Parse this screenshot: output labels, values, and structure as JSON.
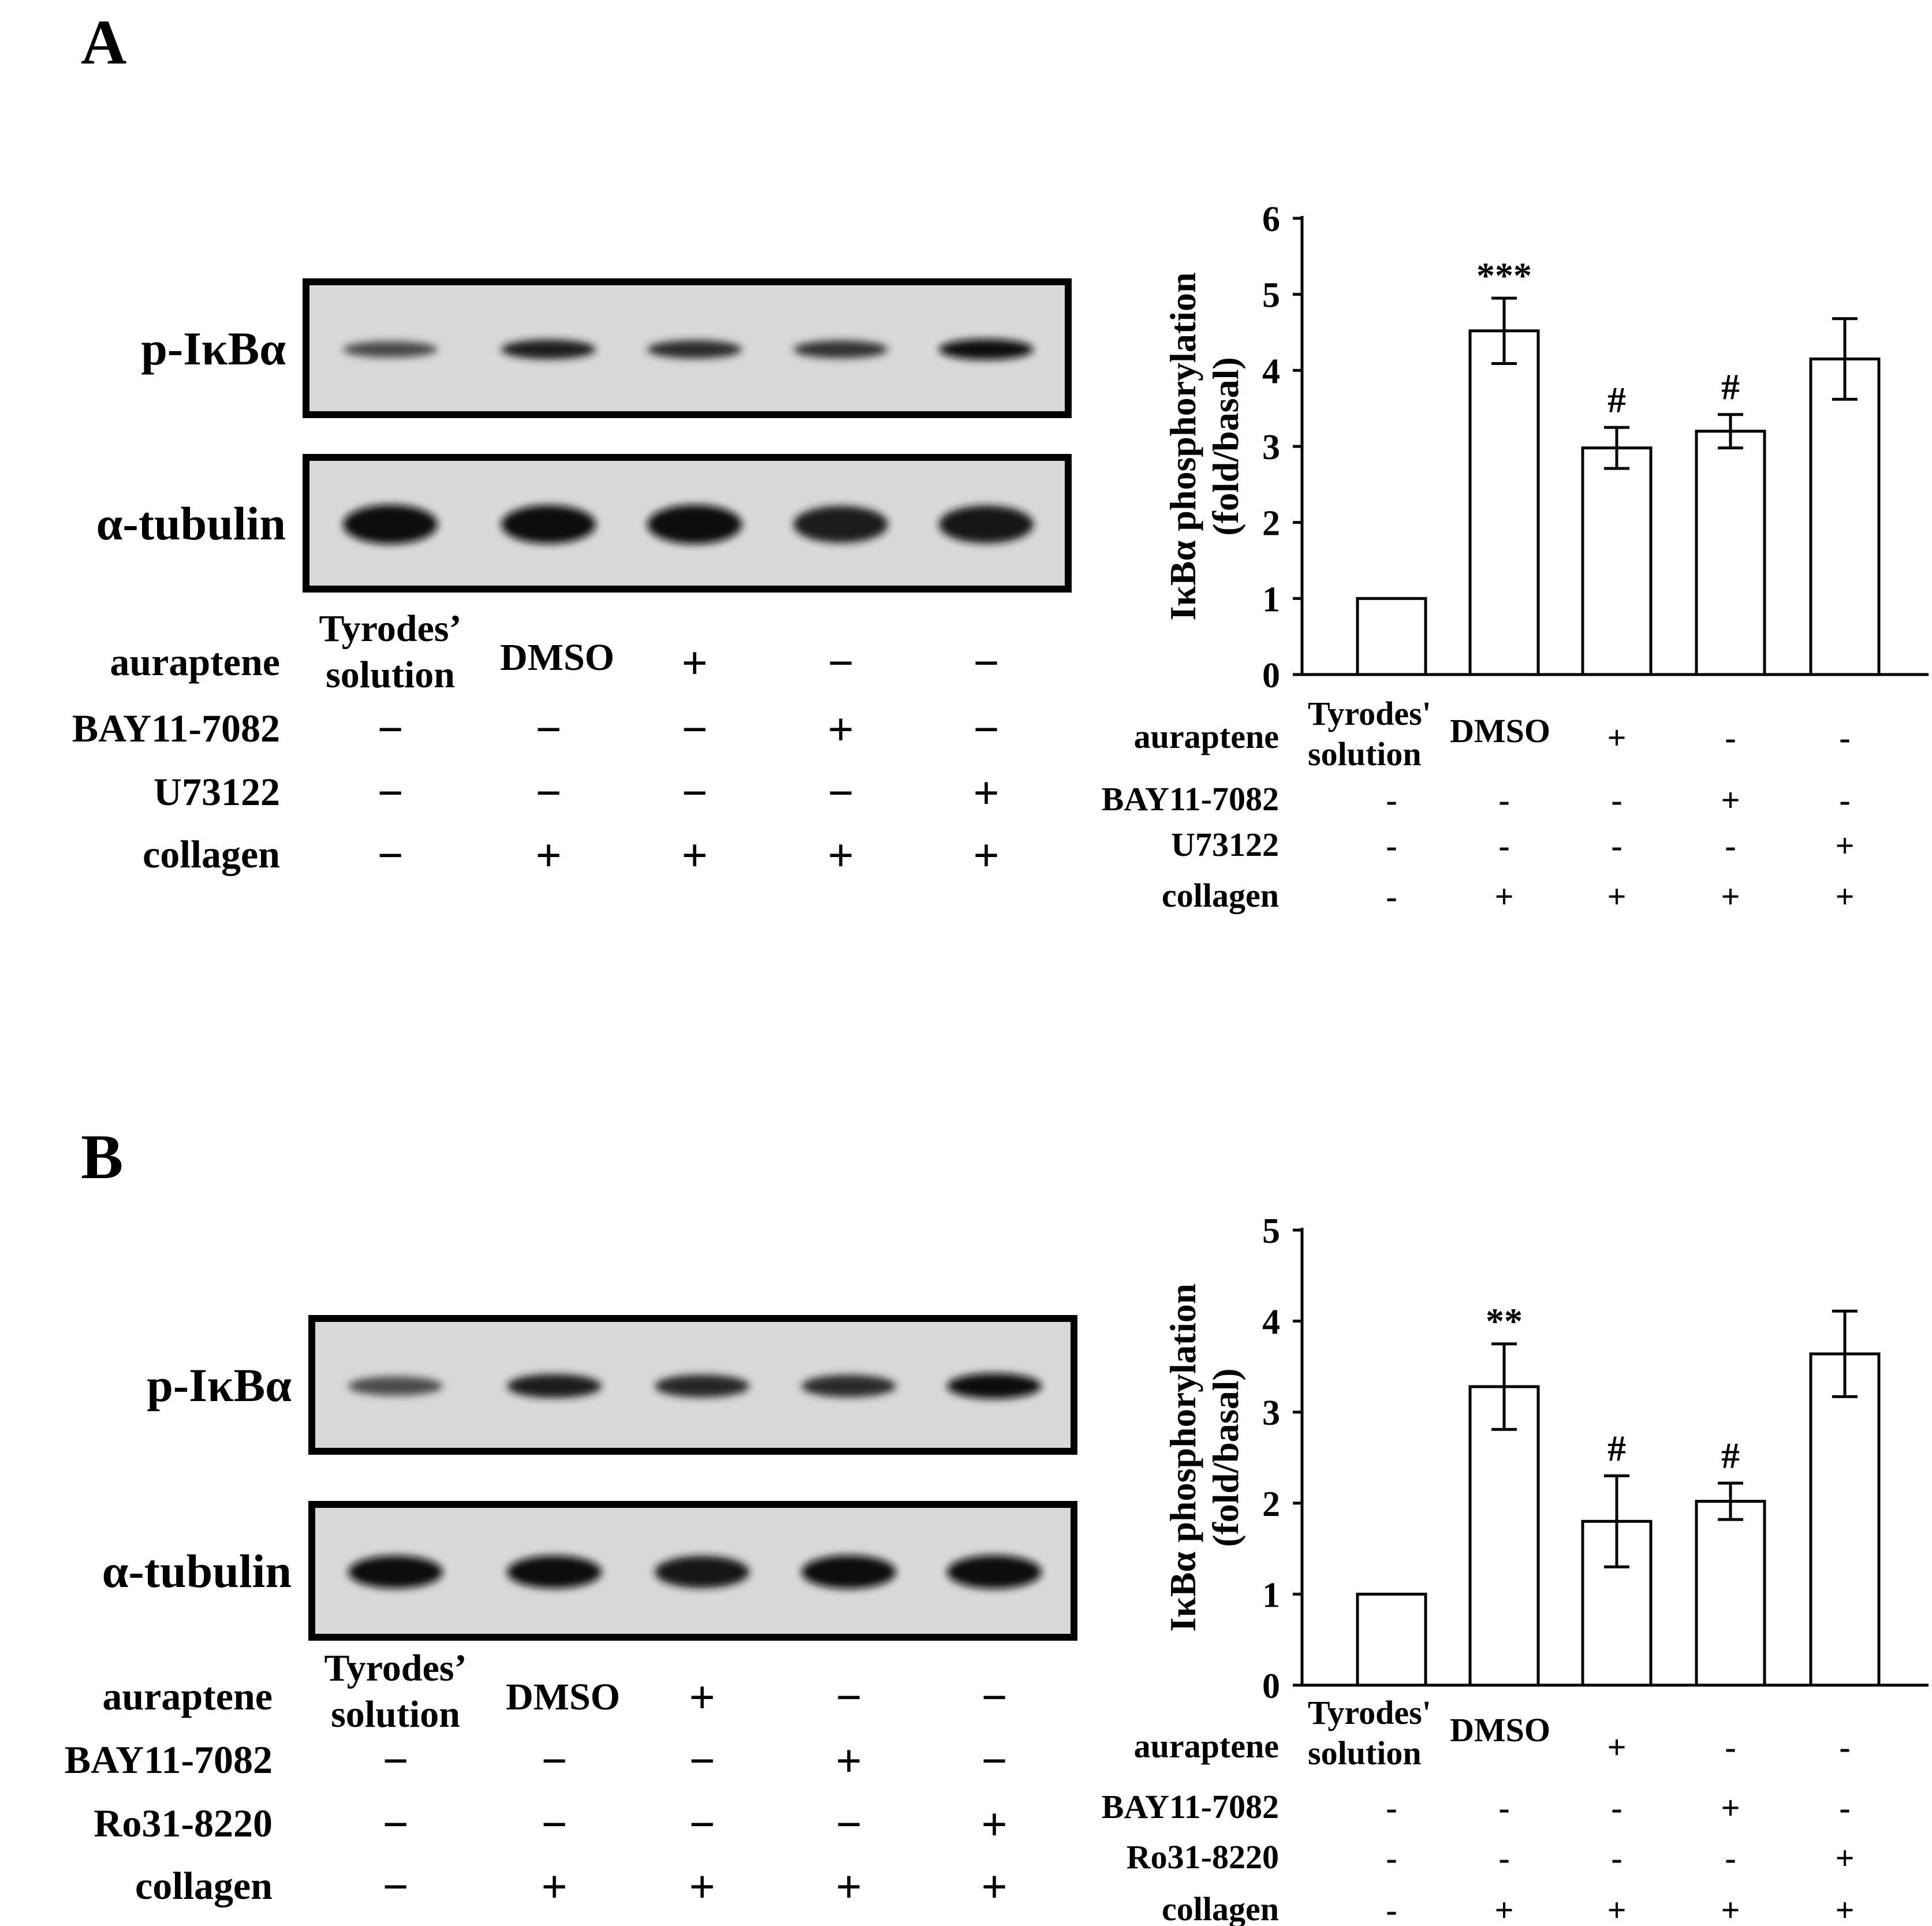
{
  "panels": [
    {
      "letter": "A",
      "blot": {
        "rows": [
          {
            "label": "p-IκBα",
            "intensities": [
              0.45,
              0.85,
              0.7,
              0.65,
              1.0
            ]
          },
          {
            "label": "α-tubulin",
            "intensities": [
              1.0,
              0.95,
              1.0,
              0.85,
              0.9
            ]
          }
        ]
      },
      "treatment_table": {
        "row_labels": [
          "auraptene",
          "BAY11-7082",
          "U73122",
          "collagen"
        ],
        "lane_header_1": [
          "Tyrodes’",
          "solution"
        ],
        "lane_header_2": "DMSO",
        "rows": [
          [
            "+",
            "−",
            "−"
          ],
          [
            "−",
            "−",
            "−",
            "+",
            "−"
          ],
          [
            "−",
            "−",
            "−",
            "−",
            "+"
          ],
          [
            "−",
            "+",
            "+",
            "+",
            "+"
          ]
        ]
      },
      "chart_table": {
        "row_labels": [
          "auraptene",
          "BAY11-7082",
          "U73122",
          "collagen"
        ],
        "lane_header_1": [
          "Tyrodes'",
          "solution"
        ],
        "lane_header_2": "DMSO",
        "rows": [
          [
            "+",
            "-",
            "-"
          ],
          [
            "-",
            "-",
            "-",
            "+",
            "-"
          ],
          [
            "-",
            "-",
            "-",
            "-",
            "+"
          ],
          [
            "-",
            "+",
            "+",
            "+",
            "+"
          ]
        ]
      },
      "chart_data": {
        "type": "bar",
        "title": "",
        "xlabel": "",
        "ylabel": [
          "IκBα phosphorylation",
          "(fold/basal)"
        ],
        "ylim": [
          0,
          6
        ],
        "yticks": [
          0,
          1,
          2,
          3,
          4,
          5,
          6
        ],
        "grid": false,
        "categories": [
          "Tyrodes' solution",
          "DMSO + collagen",
          "auraptene + collagen",
          "BAY11-7082 + collagen",
          "U73122 + collagen"
        ],
        "values": [
          1.0,
          4.52,
          2.98,
          3.2,
          4.15
        ],
        "errors": [
          0,
          0.43,
          0.27,
          0.22,
          0.53
        ],
        "annotations": [
          "",
          "***",
          "#",
          "#",
          ""
        ]
      }
    },
    {
      "letter": "B",
      "blot": {
        "rows": [
          {
            "label": "p-IκBα",
            "intensities": [
              0.4,
              0.85,
              0.75,
              0.7,
              1.0
            ]
          },
          {
            "label": "α-tubulin",
            "intensities": [
              0.95,
              0.95,
              0.9,
              1.0,
              1.0
            ]
          }
        ]
      },
      "treatment_table": {
        "row_labels": [
          "auraptene",
          "BAY11-7082",
          "Ro31-8220",
          "collagen"
        ],
        "lane_header_1": [
          "Tyrodes’",
          "solution"
        ],
        "lane_header_2": "DMSO",
        "rows": [
          [
            "+",
            "−",
            "−"
          ],
          [
            "−",
            "−",
            "−",
            "+",
            "−"
          ],
          [
            "−",
            "−",
            "−",
            "−",
            "+"
          ],
          [
            "−",
            "+",
            "+",
            "+",
            "+"
          ]
        ]
      },
      "chart_table": {
        "row_labels": [
          "auraptene",
          "BAY11-7082",
          "Ro31-8220",
          "collagen"
        ],
        "lane_header_1": [
          "Tyrodes'",
          "solution"
        ],
        "lane_header_2": "DMSO",
        "rows": [
          [
            "+",
            "-",
            "-"
          ],
          [
            "-",
            "-",
            "-",
            "+",
            "-"
          ],
          [
            "-",
            "-",
            "-",
            "-",
            "+"
          ],
          [
            "-",
            "+",
            "+",
            "+",
            "+"
          ]
        ]
      },
      "chart_data": {
        "type": "bar",
        "title": "",
        "xlabel": "",
        "ylabel": [
          "IκBα phosphorylation",
          "(fold/basal)"
        ],
        "ylim": [
          0,
          5
        ],
        "yticks": [
          0,
          1,
          2,
          3,
          4,
          5
        ],
        "grid": false,
        "categories": [
          "Tyrodes' solution",
          "DMSO + collagen",
          "auraptene + collagen",
          "BAY11-7082 + collagen",
          "Ro31-8220 + collagen"
        ],
        "values": [
          1.0,
          3.28,
          1.8,
          2.02,
          3.64
        ],
        "errors": [
          0,
          0.47,
          0.5,
          0.2,
          0.47
        ],
        "annotations": [
          "",
          "**",
          "#",
          "#",
          ""
        ]
      }
    }
  ]
}
